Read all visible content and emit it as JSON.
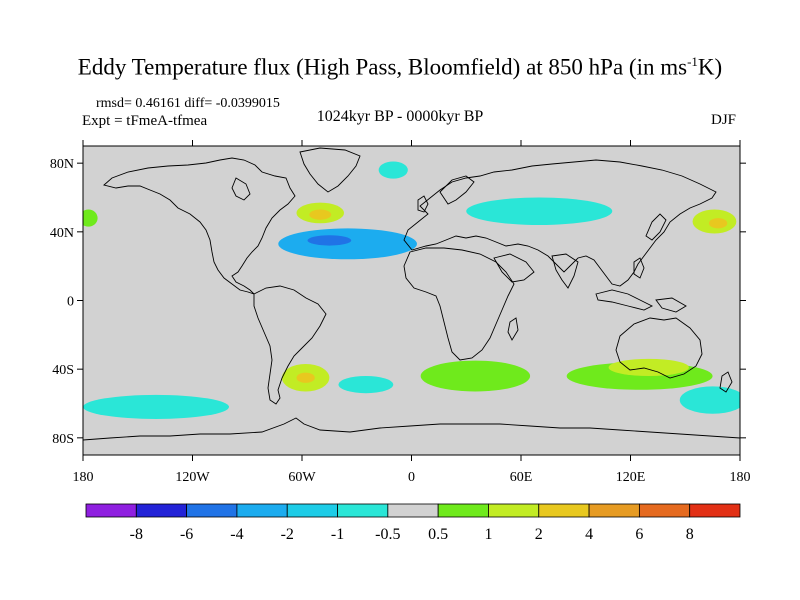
{
  "figure": {
    "title_main": "Eddy Temperature flux (High Pass, Bloomfield) at 850 hPa (in ms",
    "title_sup": "-1",
    "title_end": "K)",
    "stats": "rmsd= 0.46161 diff= -0.0399015",
    "experiment": "Expt = tFmeA-tfmea",
    "period": "1024kyr BP - 0000kyr BP",
    "season": "DJF"
  },
  "map": {
    "lat_labels": [
      "80N",
      "40N",
      "0",
      "40S",
      "80S"
    ],
    "lat_values": [
      80,
      40,
      0,
      -40,
      -80
    ],
    "lon_labels": [
      "180",
      "120W",
      "60W",
      "0",
      "60E",
      "120E",
      "180"
    ],
    "lon_values": [
      -180,
      -120,
      -60,
      0,
      60,
      120,
      180
    ],
    "lon_range": [
      -180,
      180
    ],
    "lat_range": [
      -90,
      90
    ],
    "background_color": "#d2d2d2",
    "regions": [
      {
        "name": "north-atlantic-negative",
        "level": -2,
        "lon": -35,
        "lat": 33,
        "rlon": 38,
        "rlat": 9
      },
      {
        "name": "north-atlantic-core-negative",
        "level": -4,
        "lon": -45,
        "lat": 35,
        "rlon": 12,
        "rlat": 3
      },
      {
        "name": "east-asia-negative",
        "level": -1,
        "lon": 70,
        "lat": 52,
        "rlon": 40,
        "rlat": 8
      },
      {
        "name": "arctic-negative",
        "level": -1,
        "lon": -10,
        "lat": 76,
        "rlon": 8,
        "rlat": 5
      },
      {
        "name": "newfoundland-positive",
        "level": 2,
        "lon": -50,
        "lat": 51,
        "rlon": 13,
        "rlat": 6
      },
      {
        "name": "newfoundland-core-positive",
        "level": 4,
        "lon": -50,
        "lat": 50,
        "rlon": 6,
        "rlat": 3
      },
      {
        "name": "north-pacific-west-positive",
        "level": 2,
        "lon": 166,
        "lat": 46,
        "rlon": 12,
        "rlat": 7
      },
      {
        "name": "north-pacific-core-positive",
        "level": 4,
        "lon": 168,
        "lat": 45,
        "rlon": 5,
        "rlat": 3
      },
      {
        "name": "dateline-west-positive",
        "level": 1,
        "lon": -177,
        "lat": 48,
        "rlon": 5,
        "rlat": 5
      },
      {
        "name": "south-america-positive",
        "level": 2,
        "lon": -58,
        "lat": -45,
        "rlon": 13,
        "rlat": 8
      },
      {
        "name": "south-america-core-positive",
        "level": 4,
        "lon": -58,
        "lat": -45,
        "rlon": 5,
        "rlat": 3
      },
      {
        "name": "south-indian-positive",
        "level": 1,
        "lon": 35,
        "lat": -44,
        "rlon": 30,
        "rlat": 9
      },
      {
        "name": "australia-south-positive",
        "level": 1,
        "lon": 125,
        "lat": -44,
        "rlon": 40,
        "rlat": 8
      },
      {
        "name": "australia-core-positive",
        "level": 2,
        "lon": 130,
        "lat": -39,
        "rlon": 22,
        "rlat": 5
      },
      {
        "name": "southern-ocean-west-negative",
        "level": -1,
        "lon": -140,
        "lat": -62,
        "rlon": 40,
        "rlat": 7
      },
      {
        "name": "southern-ocean-atlantic-negative",
        "level": -1,
        "lon": -25,
        "lat": -49,
        "rlon": 15,
        "rlat": 5
      },
      {
        "name": "southern-ocean-east-negative",
        "level": -1,
        "lon": 165,
        "lat": -58,
        "rlon": 18,
        "rlat": 8
      }
    ]
  },
  "colorbar": {
    "colors": [
      "#8f1fe0",
      "#2323d7",
      "#2073e6",
      "#1cacef",
      "#1dcce7",
      "#2ae6d7",
      "#d2d2d2",
      "#6fea1c",
      "#c2ec24",
      "#e8c81f",
      "#e69b23",
      "#e56a1f",
      "#e23015"
    ],
    "labels": [
      "-8",
      "-6",
      "-4",
      "-2",
      "-1",
      "-0.5",
      "0.5",
      "1",
      "2",
      "4",
      "6",
      "8"
    ],
    "level_colors": {
      "-8": "#8f1fe0",
      "-6": "#2323d7",
      "-4": "#2073e6",
      "-2": "#1cacef",
      "-1": "#2ae6d7",
      "1": "#6fea1c",
      "2": "#c2ec24",
      "4": "#e8c81f"
    }
  }
}
